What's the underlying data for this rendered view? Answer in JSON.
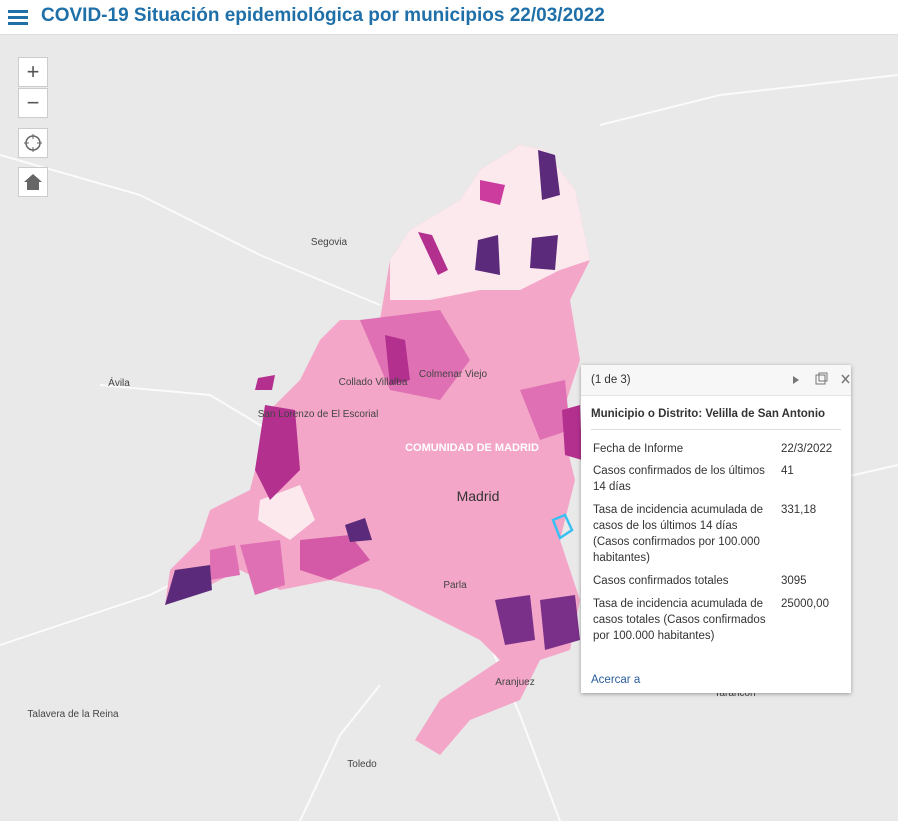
{
  "header": {
    "title": "COVID-19 Situación epidemiológica por municipios 22/03/2022"
  },
  "controls": {
    "zoom_in": "+",
    "zoom_out": "−"
  },
  "map_labels": [
    "Segovia",
    "Ávila",
    "Collado Villalba",
    "Colmenar Viejo",
    "San Lorenzo de El Escorial",
    "COMUNIDAD DE MADRID",
    "Madrid",
    "Parla",
    "Aranjuez",
    "Talavera de la Reina",
    "Toledo",
    "Tarancón"
  ],
  "popup": {
    "pager": "(1 de 3)",
    "title": "Municipio o Distrito: Velilla de San Antonio",
    "rows": [
      {
        "field": "Fecha de Informe",
        "value": "22/3/2022"
      },
      {
        "field": "Casos confirmados de los últimos 14 días",
        "value": "41"
      },
      {
        "field": "Tasa de incidencia acumulada de casos de los últimos 14 días (Casos confirmados por 100.000 habitantes)",
        "value": "331,18"
      },
      {
        "field": "Casos confirmados totales",
        "value": "3095"
      },
      {
        "field": "Tasa de incidencia acumulada de casos totales (Casos confirmados por 100.000 habitantes)",
        "value": "25000,00"
      }
    ],
    "action": "Acercar a"
  }
}
